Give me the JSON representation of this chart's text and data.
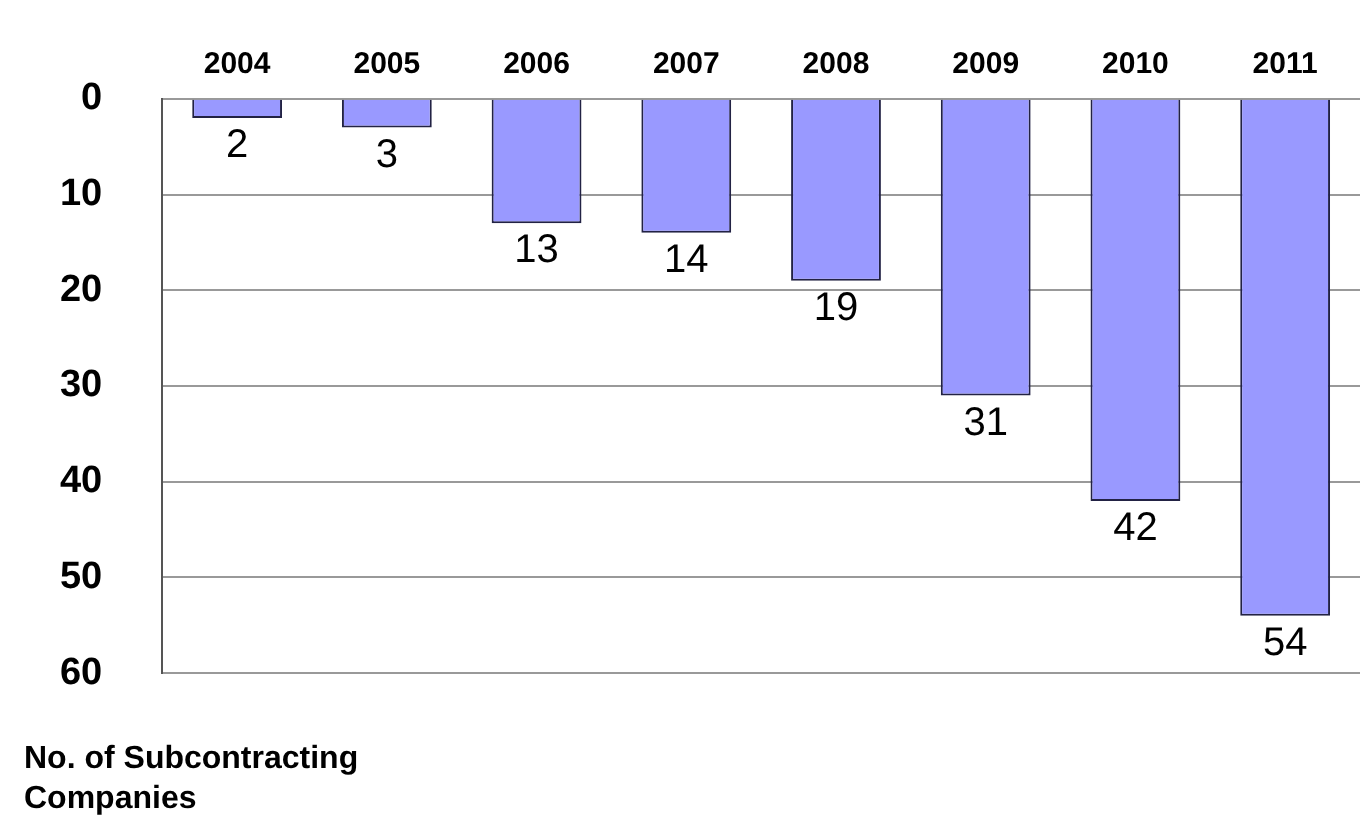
{
  "chart_data": {
    "type": "bar",
    "ylabel": "No. of Subcontracting Companies",
    "categories": [
      "2004",
      "2005",
      "2006",
      "2007",
      "2008",
      "2009",
      "2010",
      "2011"
    ],
    "values": [
      2,
      3,
      13,
      14,
      19,
      31,
      42,
      54
    ],
    "color": "#9999ff",
    "ylim": [
      60,
      0
    ],
    "yticks": [
      0,
      10,
      20,
      30,
      40,
      50,
      60
    ],
    "grid": "y",
    "data_labels": true,
    "legend": false
  }
}
